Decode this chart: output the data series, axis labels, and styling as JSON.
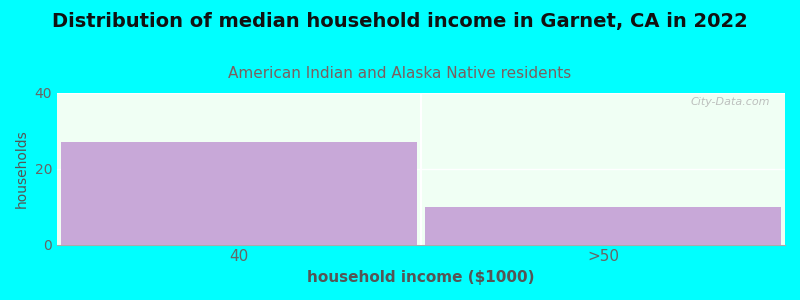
{
  "title": "Distribution of median household income in Garnet, CA in 2022",
  "subtitle": "American Indian and Alaska Native residents",
  "xlabel": "household income ($1000)",
  "ylabel": "households",
  "categories": [
    "40",
    ">50"
  ],
  "values": [
    27,
    10
  ],
  "bar_color": "#c8a8d8",
  "bar_edgecolor": "none",
  "background_color": "#00ffff",
  "plot_bg_color": "#f0fff4",
  "ylim": [
    0,
    40
  ],
  "yticks": [
    0,
    20,
    40
  ],
  "title_fontsize": 14,
  "subtitle_fontsize": 11,
  "subtitle_color": "#7a6060",
  "xlabel_fontsize": 11,
  "ylabel_fontsize": 10,
  "watermark": "City-Data.com",
  "bar_width": 0.98
}
